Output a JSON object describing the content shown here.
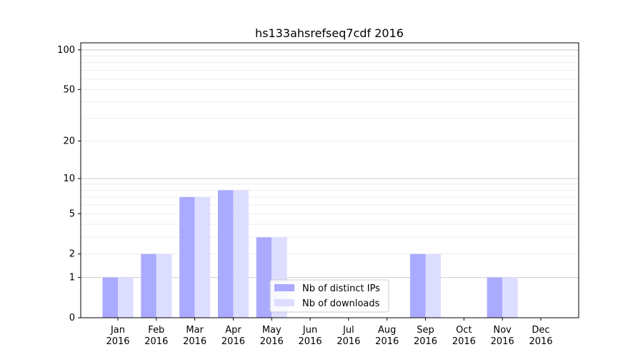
{
  "chart_data": {
    "type": "bar",
    "title": "hs133ahsrefseq7cdf 2016",
    "xlabel": "",
    "ylabel": "",
    "yscale": "log(1+y)",
    "ylim": [
      0,
      113
    ],
    "yticks": [
      0,
      1,
      2,
      5,
      10,
      20,
      50,
      100
    ],
    "grid": true,
    "legend_placement": "lower-center",
    "categories": [
      [
        "Jan",
        "2016"
      ],
      [
        "Feb",
        "2016"
      ],
      [
        "Mar",
        "2016"
      ],
      [
        "Apr",
        "2016"
      ],
      [
        "May",
        "2016"
      ],
      [
        "Jun",
        "2016"
      ],
      [
        "Jul",
        "2016"
      ],
      [
        "Aug",
        "2016"
      ],
      [
        "Sep",
        "2016"
      ],
      [
        "Oct",
        "2016"
      ],
      [
        "Nov",
        "2016"
      ],
      [
        "Dec",
        "2016"
      ]
    ],
    "series": [
      {
        "name": "Nb of distinct IPs",
        "color": "#aaaaff",
        "values": [
          1,
          2,
          7,
          8,
          3,
          0,
          0,
          0,
          2,
          0,
          1,
          0
        ]
      },
      {
        "name": "Nb of downloads",
        "color": "#ddddff",
        "values": [
          1,
          2,
          7,
          8,
          3,
          0,
          0,
          0,
          2,
          0,
          1,
          0
        ]
      }
    ]
  }
}
